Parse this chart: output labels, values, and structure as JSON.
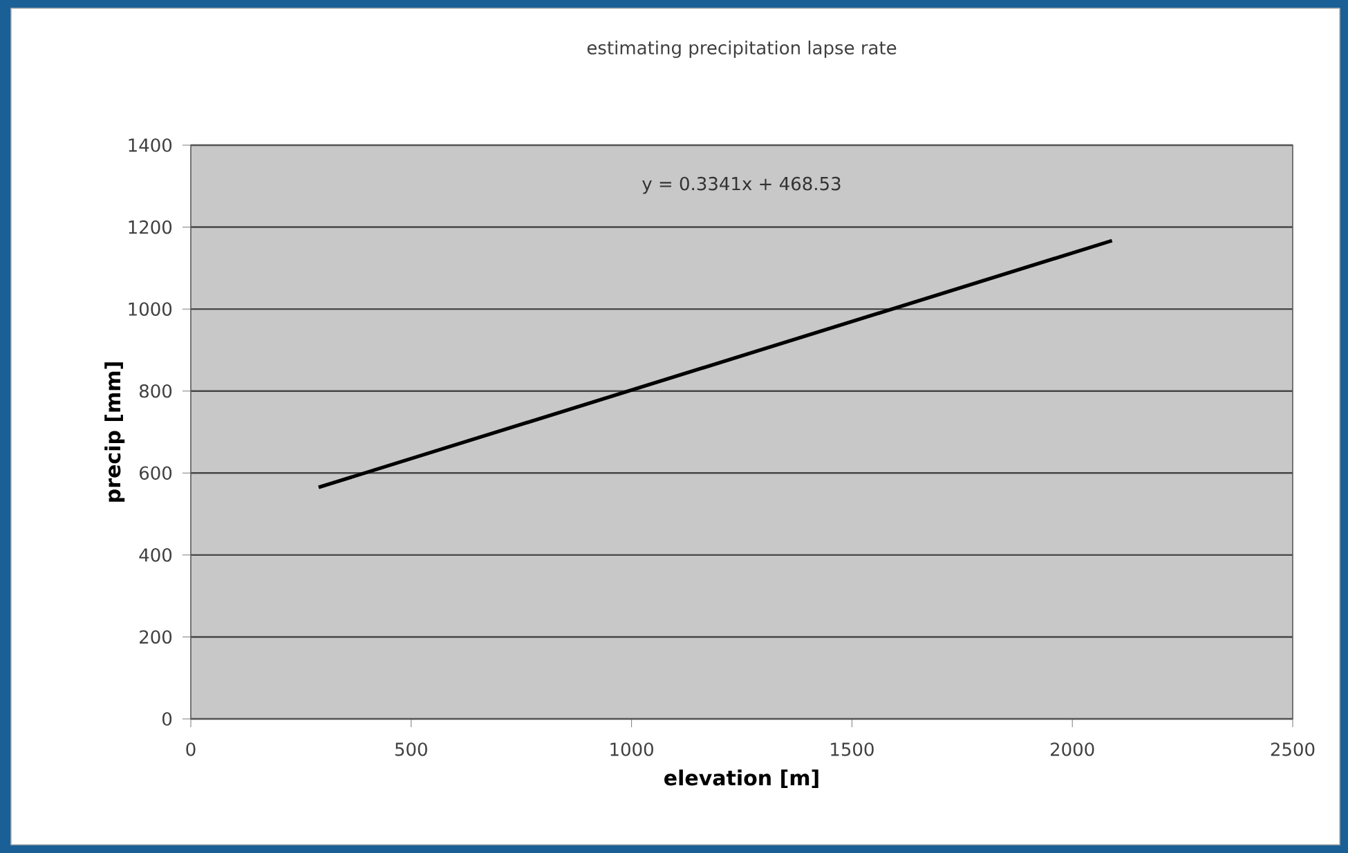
{
  "chart_data": {
    "type": "line",
    "title": "estimating precipitation lapse rate",
    "xlabel": "elevation [m]",
    "ylabel": "precip [mm]",
    "annotations": [
      "y = 0.3341x + 468.53"
    ],
    "x": [
      290,
      2090
    ],
    "series": [
      {
        "color": "#000000",
        "values": [
          565,
          1167
        ]
      }
    ],
    "xlim": [
      0,
      2500
    ],
    "xticks": [
      0,
      500,
      1000,
      1500,
      2000,
      2500
    ],
    "ylim": [
      0,
      1400
    ],
    "yticks": [
      0,
      200,
      400,
      600,
      800,
      1000,
      1200,
      1400
    ],
    "grid": "y"
  }
}
